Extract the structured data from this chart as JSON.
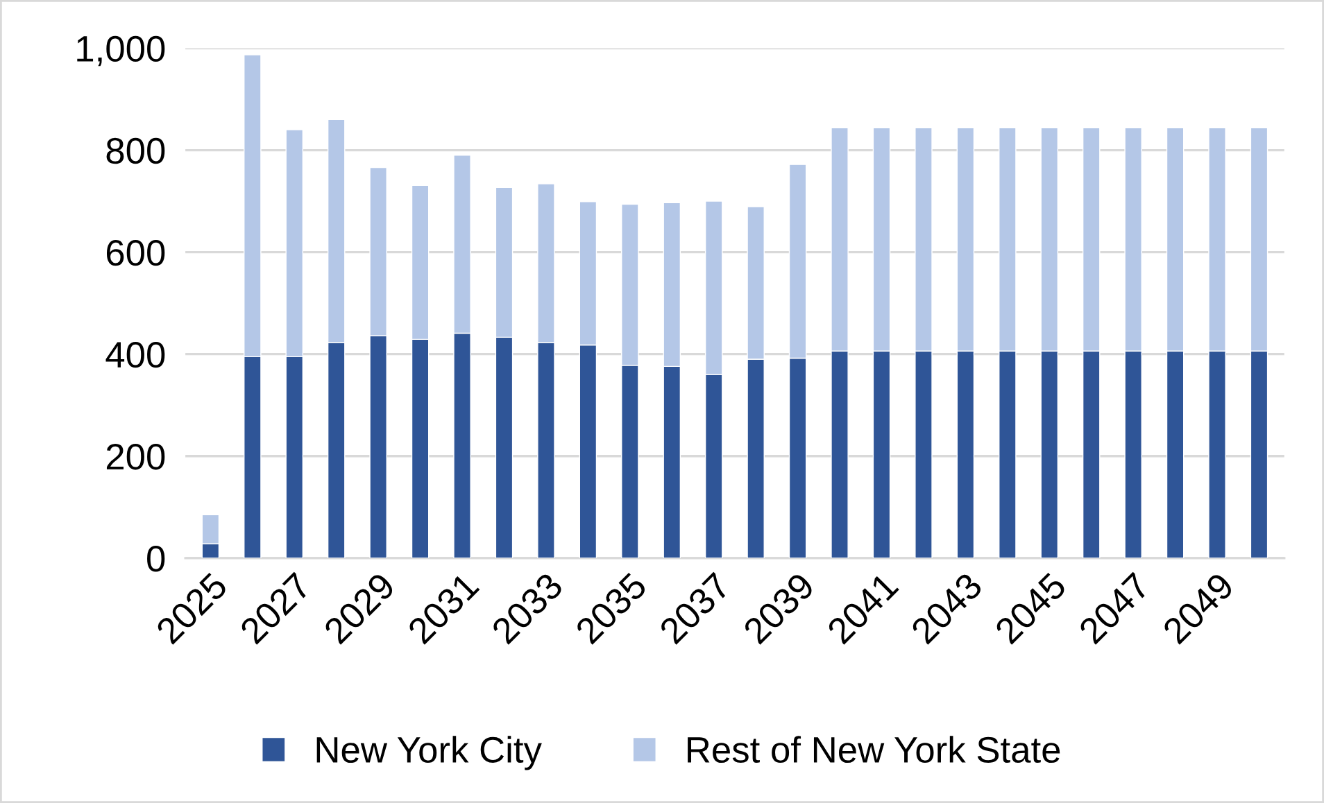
{
  "chart_data": {
    "type": "bar",
    "stacked": true,
    "categories": [
      "2025",
      null,
      "2027",
      null,
      "2029",
      null,
      "2031",
      null,
      "2033",
      null,
      "2035",
      null,
      "2037",
      null,
      "2039",
      null,
      "2041",
      null,
      "2043",
      null,
      "2045",
      null,
      "2047",
      null,
      "2049",
      null
    ],
    "series": [
      {
        "name": "New York City",
        "color": "#2f5597",
        "values": [
          28,
          395,
          395,
          423,
          436,
          429,
          441,
          433,
          423,
          418,
          378,
          376,
          360,
          390,
          392,
          406,
          406,
          406,
          406,
          406,
          406,
          406,
          406,
          406,
          406,
          406
        ]
      },
      {
        "name": "Rest of New York State",
        "color": "#b4c7e7",
        "values": [
          57,
          592,
          445,
          437,
          330,
          302,
          349,
          294,
          311,
          281,
          316,
          321,
          340,
          299,
          380,
          438,
          438,
          438,
          438,
          438,
          438,
          438,
          438,
          438,
          438,
          438
        ]
      }
    ],
    "ylim": [
      0,
      1000
    ],
    "yticks": [
      0,
      200,
      400,
      600,
      {
        "value": 800,
        "label": "800"
      },
      {
        "value": 1000,
        "label": "1,000"
      }
    ],
    "grid": "y",
    "legend": "bottom"
  }
}
